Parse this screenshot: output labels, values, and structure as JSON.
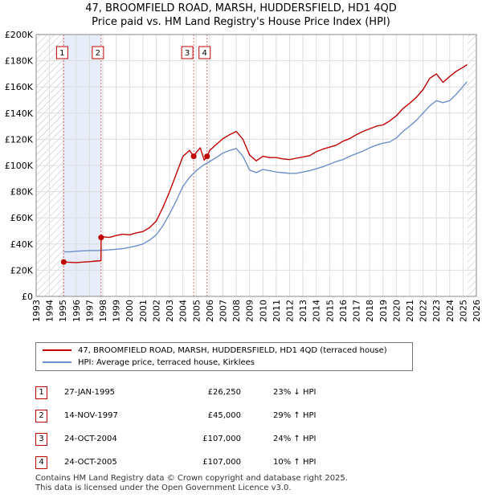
{
  "title_line1": "47, BROOMFIELD ROAD, MARSH, HUDDERSFIELD, HD1 4QD",
  "title_line2": "Price paid vs. HM Land Registry's House Price Index (HPI)",
  "colors": {
    "property": "#c00000",
    "hpi": "#6b8fc9",
    "shade": "#e6ecf8",
    "grid": "#dddddd",
    "marker_line": "#e07070"
  },
  "legend": {
    "property_label": "47, BROOMFIELD ROAD, MARSH, HUDDERSFIELD, HD1 4QD (terraced house)",
    "hpi_label": "HPI: Average price, terraced house, Kirklees"
  },
  "sales": [
    {
      "num": "1",
      "date": "27-JAN-1995",
      "price": "£26,250",
      "hpi": "23% ↓ HPI"
    },
    {
      "num": "2",
      "date": "14-NOV-1997",
      "price": "£45,000",
      "hpi": "29% ↑ HPI"
    },
    {
      "num": "3",
      "date": "24-OCT-2004",
      "price": "£107,000",
      "hpi": "24% ↑ HPI"
    },
    {
      "num": "4",
      "date": "24-OCT-2005",
      "price": "£107,000",
      "hpi": "10% ↑ HPI"
    }
  ],
  "footer_line1": "Contains HM Land Registry data © Crown copyright and database right 2025.",
  "footer_line2": "This data is licensed under the Open Government Licence v3.0.",
  "chart_data": {
    "type": "line",
    "title": "47, BROOMFIELD ROAD, MARSH, HUDDERSFIELD, HD1 4QD — Price paid vs. HM Land Registry's House Price Index (HPI)",
    "xlabel": "",
    "ylabel": "",
    "xlim": [
      1993,
      2026
    ],
    "ylim": [
      0,
      200000
    ],
    "x_ticks": [
      1993,
      1994,
      1995,
      1996,
      1997,
      1998,
      1999,
      2000,
      2001,
      2002,
      2003,
      2004,
      2005,
      2006,
      2007,
      2008,
      2009,
      2010,
      2011,
      2012,
      2013,
      2014,
      2015,
      2016,
      2017,
      2018,
      2019,
      2020,
      2021,
      2022,
      2023,
      2024,
      2025,
      2026
    ],
    "y_ticks": [
      0,
      20000,
      40000,
      60000,
      80000,
      100000,
      120000,
      140000,
      160000,
      180000,
      200000
    ],
    "y_tick_labels": [
      "£0",
      "£20K",
      "£40K",
      "£60K",
      "£80K",
      "£100K",
      "£120K",
      "£140K",
      "£160K",
      "£180K",
      "£200K"
    ],
    "grid": true,
    "shaded_regions": [
      [
        1995.07,
        1997.87
      ]
    ],
    "hatched_regions": [
      [
        1993,
        1995.07
      ],
      [
        2025.3,
        2026
      ]
    ],
    "sale_markers": [
      {
        "label": "1",
        "x": 1995.07,
        "y": 26250
      },
      {
        "label": "2",
        "x": 1997.87,
        "y": 45000
      },
      {
        "label": "3",
        "x": 2004.81,
        "y": 107000
      },
      {
        "label": "4",
        "x": 2005.81,
        "y": 107000
      }
    ],
    "series": [
      {
        "name": "47, BROOMFIELD ROAD, MARSH, HUDDERSFIELD, HD1 4QD (terraced house)",
        "color": "#c00000",
        "x": [
          1995.07,
          1995.5,
          1996,
          1996.5,
          1997,
          1997.5,
          1997.86,
          1997.87,
          1998,
          1998.5,
          1999,
          1999.5,
          2000,
          2000.5,
          2001,
          2001.5,
          2002,
          2002.5,
          2003,
          2003.5,
          2004,
          2004.5,
          2004.81,
          2004.82,
          2005,
          2005.3,
          2005.6,
          2005.81,
          2005.82,
          2006,
          2006.5,
          2007,
          2007.5,
          2008,
          2008.5,
          2009,
          2009.5,
          2010,
          2010.5,
          2011,
          2011.5,
          2012,
          2012.5,
          2013,
          2013.5,
          2014,
          2014.5,
          2015,
          2015.5,
          2016,
          2016.5,
          2017,
          2017.5,
          2018,
          2018.5,
          2019,
          2019.5,
          2020,
          2020.5,
          2021,
          2021.5,
          2022,
          2022.5,
          2023,
          2023.5,
          2024,
          2024.5,
          2025,
          2025.3
        ],
        "y": [
          26250,
          26000,
          25800,
          26200,
          26500,
          27000,
          27300,
          45000,
          45500,
          45000,
          46500,
          47500,
          47000,
          48500,
          49500,
          52500,
          57500,
          68000,
          80000,
          93500,
          107000,
          111500,
          107000,
          107000,
          110000,
          113500,
          104000,
          107000,
          107000,
          111500,
          116000,
          120500,
          123500,
          126000,
          120000,
          108000,
          103500,
          107000,
          106000,
          106000,
          105000,
          104500,
          105500,
          106500,
          107500,
          110500,
          112500,
          114000,
          115500,
          118500,
          120500,
          123500,
          126000,
          128000,
          130000,
          131000,
          134000,
          138000,
          143500,
          147500,
          152000,
          158000,
          166500,
          170000,
          163500,
          168000,
          172000,
          175000,
          177000
        ]
      },
      {
        "name": "HPI: Average price, terraced house, Kirklees",
        "color": "#6b8fc9",
        "x": [
          1995.07,
          1995.5,
          1996,
          1996.5,
          1997,
          1997.5,
          1998,
          1998.5,
          1999,
          1999.5,
          2000,
          2000.5,
          2001,
          2001.5,
          2002,
          2002.5,
          2003,
          2003.5,
          2004,
          2004.5,
          2005,
          2005.5,
          2006,
          2006.5,
          2007,
          2007.5,
          2008,
          2008.5,
          2009,
          2009.5,
          2010,
          2010.5,
          2011,
          2011.5,
          2012,
          2012.5,
          2013,
          2013.5,
          2014,
          2014.5,
          2015,
          2015.5,
          2016,
          2016.5,
          2017,
          2017.5,
          2018,
          2018.5,
          2019,
          2019.5,
          2020,
          2020.5,
          2021,
          2021.5,
          2022,
          2022.5,
          2023,
          2023.5,
          2024,
          2024.5,
          2025,
          2025.3
        ],
        "y": [
          34000,
          34000,
          34500,
          34800,
          35000,
          35000,
          35300,
          35500,
          36000,
          36500,
          37500,
          38500,
          40000,
          43000,
          47000,
          54000,
          63000,
          73000,
          84000,
          91000,
          96000,
          100000,
          103000,
          106000,
          109500,
          111500,
          113000,
          107000,
          96500,
          94500,
          97000,
          96000,
          95000,
          94500,
          94000,
          94000,
          95000,
          96000,
          97500,
          99000,
          101000,
          103000,
          104500,
          107000,
          109000,
          111000,
          113500,
          115500,
          117000,
          118000,
          121000,
          126000,
          130000,
          134500,
          140000,
          145500,
          149500,
          148000,
          149500,
          154500,
          160500,
          164000
        ]
      }
    ]
  }
}
